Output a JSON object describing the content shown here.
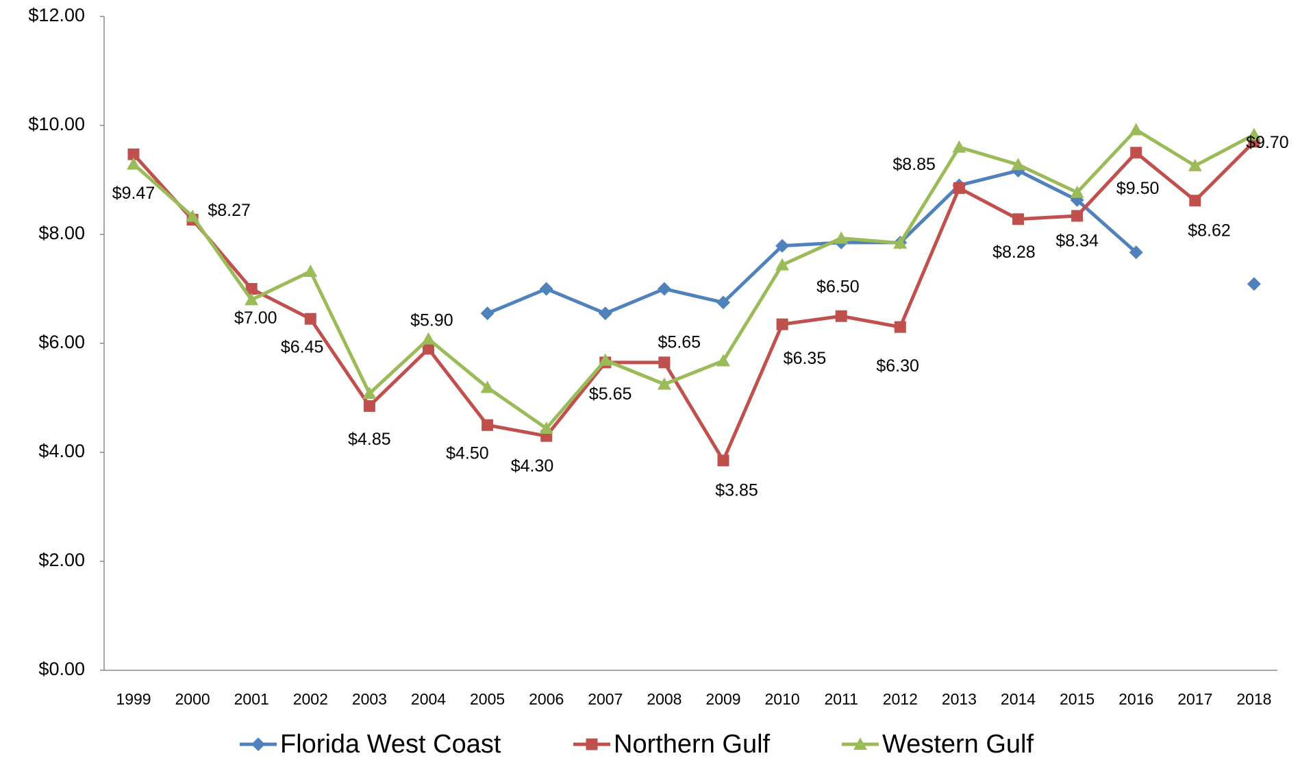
{
  "chart_data": {
    "type": "line",
    "categories": [
      "1999",
      "2000",
      "2001",
      "2002",
      "2003",
      "2004",
      "2005",
      "2006",
      "2007",
      "2008",
      "2009",
      "2010",
      "2011",
      "2012",
      "2013",
      "2014",
      "2015",
      "2016",
      "2017",
      "2018"
    ],
    "series": [
      {
        "name": "Florida West Coast",
        "color": "#4f81bd",
        "marker": "diamond",
        "values": [
          null,
          null,
          null,
          null,
          null,
          null,
          6.55,
          7.0,
          6.55,
          7.0,
          6.75,
          7.79,
          7.85,
          7.85,
          8.9,
          9.17,
          8.63,
          7.67,
          null,
          7.09
        ]
      },
      {
        "name": "Northern Gulf",
        "color": "#c0504d",
        "marker": "square",
        "values": [
          9.47,
          8.27,
          7.0,
          6.45,
          4.85,
          5.9,
          4.5,
          4.3,
          5.65,
          5.65,
          3.85,
          6.35,
          6.5,
          6.3,
          8.85,
          8.28,
          8.34,
          9.5,
          8.62,
          9.7
        ],
        "value_labels": [
          "$9.47",
          "$8.27",
          "$7.00",
          "$6.45",
          "$4.85",
          "$5.90",
          "$4.50",
          "$4.30",
          "$5.65",
          "$5.65",
          "$3.85",
          "$6.35",
          "$6.50",
          "$6.30",
          "$8.85",
          "$8.28",
          "$8.34",
          "$9.50",
          "$8.62",
          "$9.70"
        ]
      },
      {
        "name": "Western Gulf",
        "color": "#9bbb59",
        "marker": "triangle",
        "values": [
          9.29,
          8.33,
          6.8,
          7.32,
          5.08,
          6.08,
          5.19,
          4.44,
          5.69,
          5.25,
          5.68,
          7.44,
          7.93,
          7.84,
          9.6,
          9.28,
          8.77,
          9.92,
          9.26,
          9.83
        ]
      }
    ],
    "ylim": [
      0,
      12
    ],
    "yticks": [
      {
        "value": 0,
        "label": "$0.00"
      },
      {
        "value": 2,
        "label": "$2.00"
      },
      {
        "value": 4,
        "label": "$4.00"
      },
      {
        "value": 6,
        "label": "$6.00"
      },
      {
        "value": 8,
        "label": "$8.00"
      },
      {
        "value": 10,
        "label": "$10.00"
      },
      {
        "value": 12,
        "label": "$12.00"
      }
    ],
    "grid": false,
    "legend": "bottom"
  }
}
